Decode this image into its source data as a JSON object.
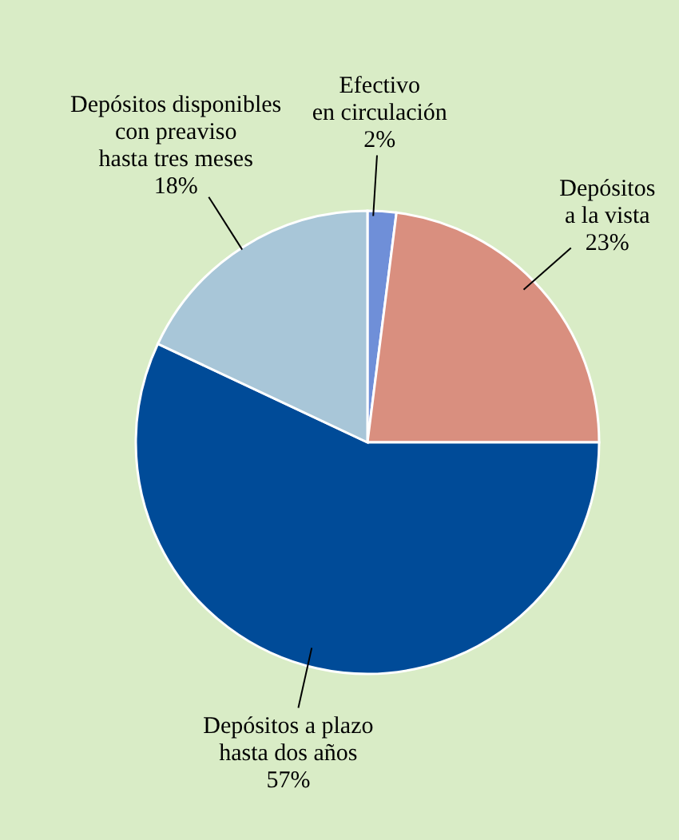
{
  "chart_data": {
    "type": "pie",
    "categories": [
      "Efectivo\nen circulación",
      "Depósitos\na la vista",
      "Depósitos a plazo\nhasta dos años",
      "Depósitos disponibles\ncon preaviso\nhasta tres meses"
    ],
    "values": [
      2,
      23,
      57,
      18
    ],
    "colors": [
      "#6f8fd8",
      "#d98f7f",
      "#004b98",
      "#a8c6d8"
    ],
    "value_labels": [
      "2%",
      "23%",
      "57%",
      "18%"
    ]
  }
}
